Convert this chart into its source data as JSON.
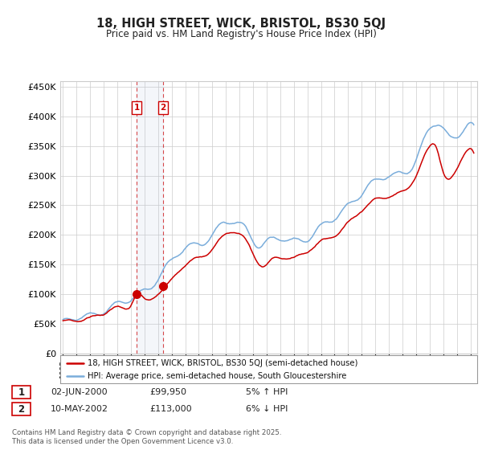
{
  "title": "18, HIGH STREET, WICK, BRISTOL, BS30 5QJ",
  "subtitle": "Price paid vs. HM Land Registry's House Price Index (HPI)",
  "ylabel_ticks": [
    "£0",
    "£50K",
    "£100K",
    "£150K",
    "£200K",
    "£250K",
    "£300K",
    "£350K",
    "£400K",
    "£450K"
  ],
  "ytick_values": [
    0,
    50000,
    100000,
    150000,
    200000,
    250000,
    300000,
    350000,
    400000,
    450000
  ],
  "ylim": [
    0,
    460000
  ],
  "xlim_start": 1994.8,
  "xlim_end": 2025.5,
  "hpi_color": "#7aaddb",
  "price_color": "#cc0000",
  "vline1_color": "#cc0000",
  "vline2_color": "#cc0000",
  "purchase1_x": 2000.42,
  "purchase1_y": 99950,
  "purchase2_x": 2002.36,
  "purchase2_y": 113000,
  "legend_line1": "18, HIGH STREET, WICK, BRISTOL, BS30 5QJ (semi-detached house)",
  "legend_line2": "HPI: Average price, semi-detached house, South Gloucestershire",
  "annotation1_date": "02-JUN-2000",
  "annotation1_price": "£99,950",
  "annotation1_hpi": "5% ↑ HPI",
  "annotation2_date": "10-MAY-2002",
  "annotation2_price": "£113,000",
  "annotation2_hpi": "6% ↓ HPI",
  "footer": "Contains HM Land Registry data © Crown copyright and database right 2025.\nThis data is licensed under the Open Government Licence v3.0.",
  "background_color": "#ffffff",
  "grid_color": "#cccccc"
}
